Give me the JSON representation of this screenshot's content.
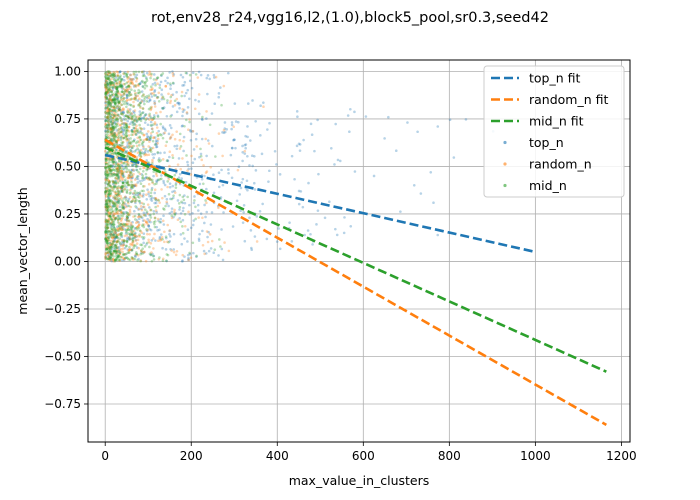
{
  "chart_data": {
    "type": "scatter",
    "title": "rot,env28_r24,vgg16,l2,(1.0),block5_pool,sr0.3,seed42",
    "xlabel": "max_value_in_clusters",
    "ylabel": "mean_vector_length",
    "xlim": [
      -40,
      1220
    ],
    "ylim": [
      -0.95,
      1.06
    ],
    "xticks": [
      0,
      200,
      400,
      600,
      800,
      1000,
      1200
    ],
    "yticks": [
      -0.75,
      -0.5,
      -0.25,
      0.0,
      0.25,
      0.5,
      0.75,
      1.0
    ],
    "xtick_labels": [
      "0",
      "200",
      "400",
      "600",
      "800",
      "1000",
      "1200"
    ],
    "ytick_labels": [
      "−0.75",
      "−0.50",
      "−0.25",
      "0.00",
      "0.25",
      "0.50",
      "0.75",
      "1.00"
    ],
    "grid": true,
    "legend_position": "top-right",
    "fit_lines": [
      {
        "name": "top_n fit",
        "color": "#1f77b4",
        "x": [
          0,
          1000
        ],
        "y": [
          0.56,
          0.05
        ]
      },
      {
        "name": "random_n fit",
        "color": "#ff7f0e",
        "x": [
          0,
          1165
        ],
        "y": [
          0.64,
          -0.86
        ]
      },
      {
        "name": "mid_n fit",
        "color": "#2ca02c",
        "x": [
          0,
          1165
        ],
        "y": [
          0.6,
          -0.58
        ]
      }
    ],
    "scatter_series": [
      {
        "name": "top_n",
        "color": "#1f77b4",
        "n_points": 900,
        "x_range": [
          0,
          1000
        ]
      },
      {
        "name": "random_n",
        "color": "#ff7f0e",
        "n_points": 900,
        "x_range": [
          0,
          1165
        ]
      },
      {
        "name": "mid_n",
        "color": "#2ca02c",
        "n_points": 1300,
        "x_range": [
          0,
          300
        ]
      }
    ],
    "legend": [
      "top_n fit",
      "random_n fit",
      "mid_n fit",
      "top_n",
      "random_n",
      "mid_n"
    ]
  }
}
